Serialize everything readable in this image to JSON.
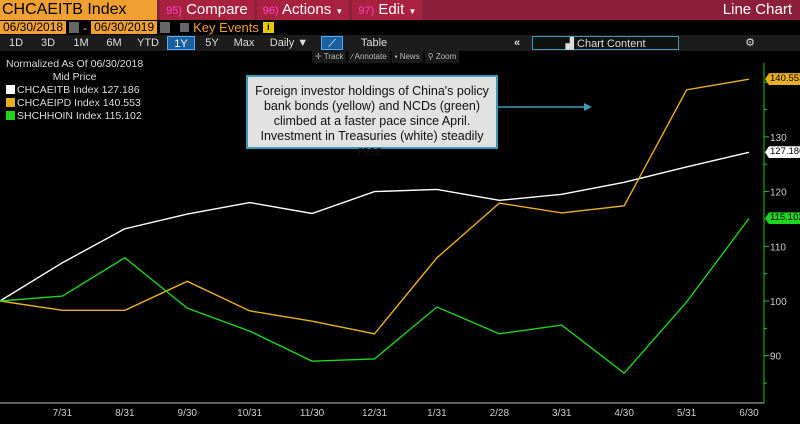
{
  "toolbar": {
    "ticker": "CHCAEITB Index",
    "compare_num": "95)",
    "compare": "Compare",
    "actions_num": "96)",
    "actions": "Actions",
    "edit_num": "97)",
    "edit": "Edit",
    "view_title": "Line Chart",
    "start_date": "06/30/2018",
    "end_date": "06/30/2019",
    "dash": "-",
    "key_events": "Key Events",
    "periods": [
      "1D",
      "3D",
      "1M",
      "6M",
      "YTD",
      "1Y",
      "5Y",
      "Max"
    ],
    "selected_period": "1Y",
    "frequency": "Daily ▼",
    "table": "Table",
    "collapse": "«",
    "chart_content": "Chart Content",
    "tools": [
      "Track",
      "Annotate",
      "News",
      "Zoom"
    ]
  },
  "colors": {
    "white_series": "#ffffff",
    "yellow_series": "#e8b020",
    "green_series": "#1ed41e",
    "axis": "#1ec81e",
    "accent": "#8c1f3a",
    "annotation_border": "#3a9ab8"
  },
  "chart_data": {
    "type": "line",
    "subtitle": "Normalized As Of 06/30/2018",
    "subtitle2": "Mid Price",
    "x": [
      "6/30",
      "7/31",
      "8/31",
      "9/30",
      "10/31",
      "11/30",
      "12/31",
      "1/31",
      "2/28",
      "3/31",
      "4/30",
      "5/31",
      "6/30"
    ],
    "x_tick_labels": [
      "7/31",
      "8/31",
      "9/30",
      "10/31",
      "11/30",
      "12/31",
      "1/31",
      "2/28",
      "3/31",
      "4/30",
      "5/31",
      "6/30"
    ],
    "y_ticks": [
      90,
      100,
      110,
      120,
      130,
      140
    ],
    "ylim": [
      83,
      145
    ],
    "grid": false,
    "legend_placement": "top-left",
    "series": [
      {
        "name": "CHCAEITB Index",
        "last": "127.186",
        "color": "#ffffff",
        "values": [
          100,
          107,
          113.2,
          115.9,
          118,
          116,
          120,
          120.4,
          118.4,
          119.5,
          121.7,
          124.5,
          127.186
        ]
      },
      {
        "name": "CHCAEIPD Index",
        "last": "140.553",
        "color": "#e8b020",
        "values": [
          100,
          98.3,
          98.3,
          103.6,
          98.2,
          96.3,
          94,
          107.9,
          117.9,
          116.1,
          117.4,
          138.6,
          140.553
        ]
      },
      {
        "name": "SHCHHOIN Index",
        "last": "115.102",
        "color": "#1ed41e",
        "values": [
          100,
          100.9,
          107.9,
          98.7,
          94.5,
          89,
          89.4,
          98.9,
          94,
          95.6,
          86.8,
          99.8,
          115.102
        ]
      }
    ],
    "annotation": "Foreign investor holdings of China's policy bank bonds (yellow) and NCDs (green) climbed at a faster pace since April. Investment in Treasuries (white) steadily rose."
  }
}
